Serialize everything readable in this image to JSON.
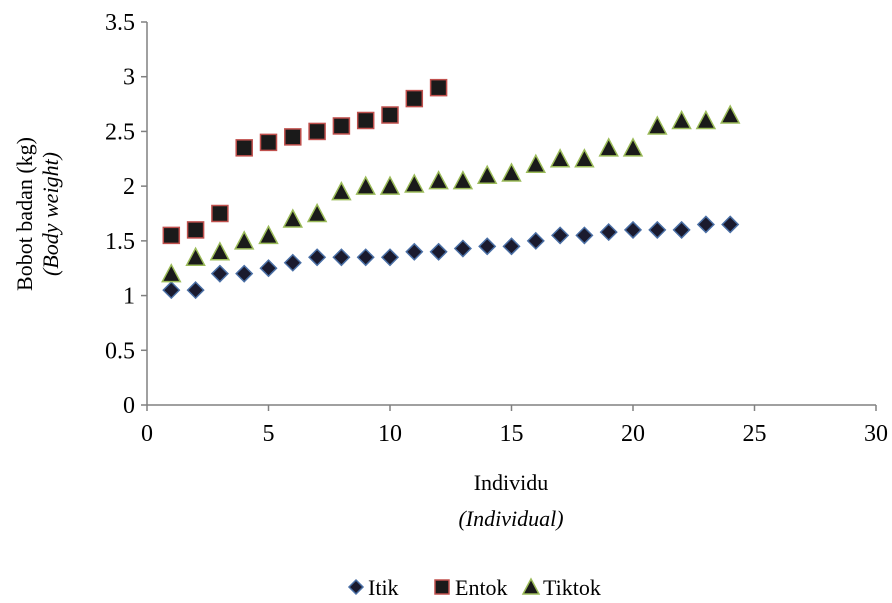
{
  "chart_data": {
    "type": "scatter",
    "ylabel": "Bobot badan (kg)",
    "ylabel_italic": "(Body weight)",
    "xlabel": "Individu",
    "xlabel_italic": "(Individual)",
    "xlim": [
      0,
      30
    ],
    "ylim": [
      0,
      3.5
    ],
    "xticks": [
      0,
      5,
      10,
      15,
      20,
      25,
      30
    ],
    "yticks": [
      0,
      0.5,
      1,
      1.5,
      2,
      2.5,
      3,
      3.5
    ],
    "xtick_labels": [
      "0",
      "5",
      "10",
      "15",
      "20",
      "25",
      "30"
    ],
    "ytick_labels": [
      "0",
      "0.5",
      "1",
      "1.5",
      "2",
      "2.5",
      "3",
      "3.5"
    ],
    "grid": false,
    "legend_position": "bottom-center",
    "series": [
      {
        "name": "Itik",
        "marker": "diamond",
        "fill": "#1a1a2e",
        "stroke": "#4a6fa5",
        "x": [
          1,
          2,
          3,
          4,
          5,
          6,
          7,
          8,
          9,
          10,
          11,
          12,
          13,
          14,
          15,
          16,
          17,
          18,
          19,
          20,
          21,
          22,
          23,
          24
        ],
        "y": [
          1.05,
          1.05,
          1.2,
          1.2,
          1.25,
          1.3,
          1.35,
          1.35,
          1.35,
          1.35,
          1.4,
          1.4,
          1.43,
          1.45,
          1.45,
          1.5,
          1.55,
          1.55,
          1.58,
          1.6,
          1.6,
          1.6,
          1.65,
          1.65
        ]
      },
      {
        "name": "Entok",
        "marker": "square",
        "fill": "#1a1a1a",
        "stroke": "#c0504d",
        "x": [
          1,
          2,
          3,
          4,
          5,
          6,
          7,
          8,
          9,
          10,
          11,
          12
        ],
        "y": [
          1.55,
          1.6,
          1.75,
          2.35,
          2.4,
          2.45,
          2.5,
          2.55,
          2.6,
          2.65,
          2.8,
          2.9
        ]
      },
      {
        "name": "Tiktok",
        "marker": "triangle",
        "fill": "#1a1a1a",
        "stroke": "#9bbb59",
        "x": [
          1,
          2,
          3,
          4,
          5,
          6,
          7,
          8,
          9,
          10,
          11,
          12,
          13,
          14,
          15,
          16,
          17,
          18,
          19,
          20,
          21,
          22,
          23,
          24
        ],
        "y": [
          1.2,
          1.35,
          1.4,
          1.5,
          1.55,
          1.7,
          1.75,
          1.95,
          2.0,
          2.0,
          2.02,
          2.05,
          2.05,
          2.1,
          2.12,
          2.2,
          2.25,
          2.25,
          2.35,
          2.35,
          2.55,
          2.6,
          2.6,
          2.65
        ]
      }
    ]
  }
}
